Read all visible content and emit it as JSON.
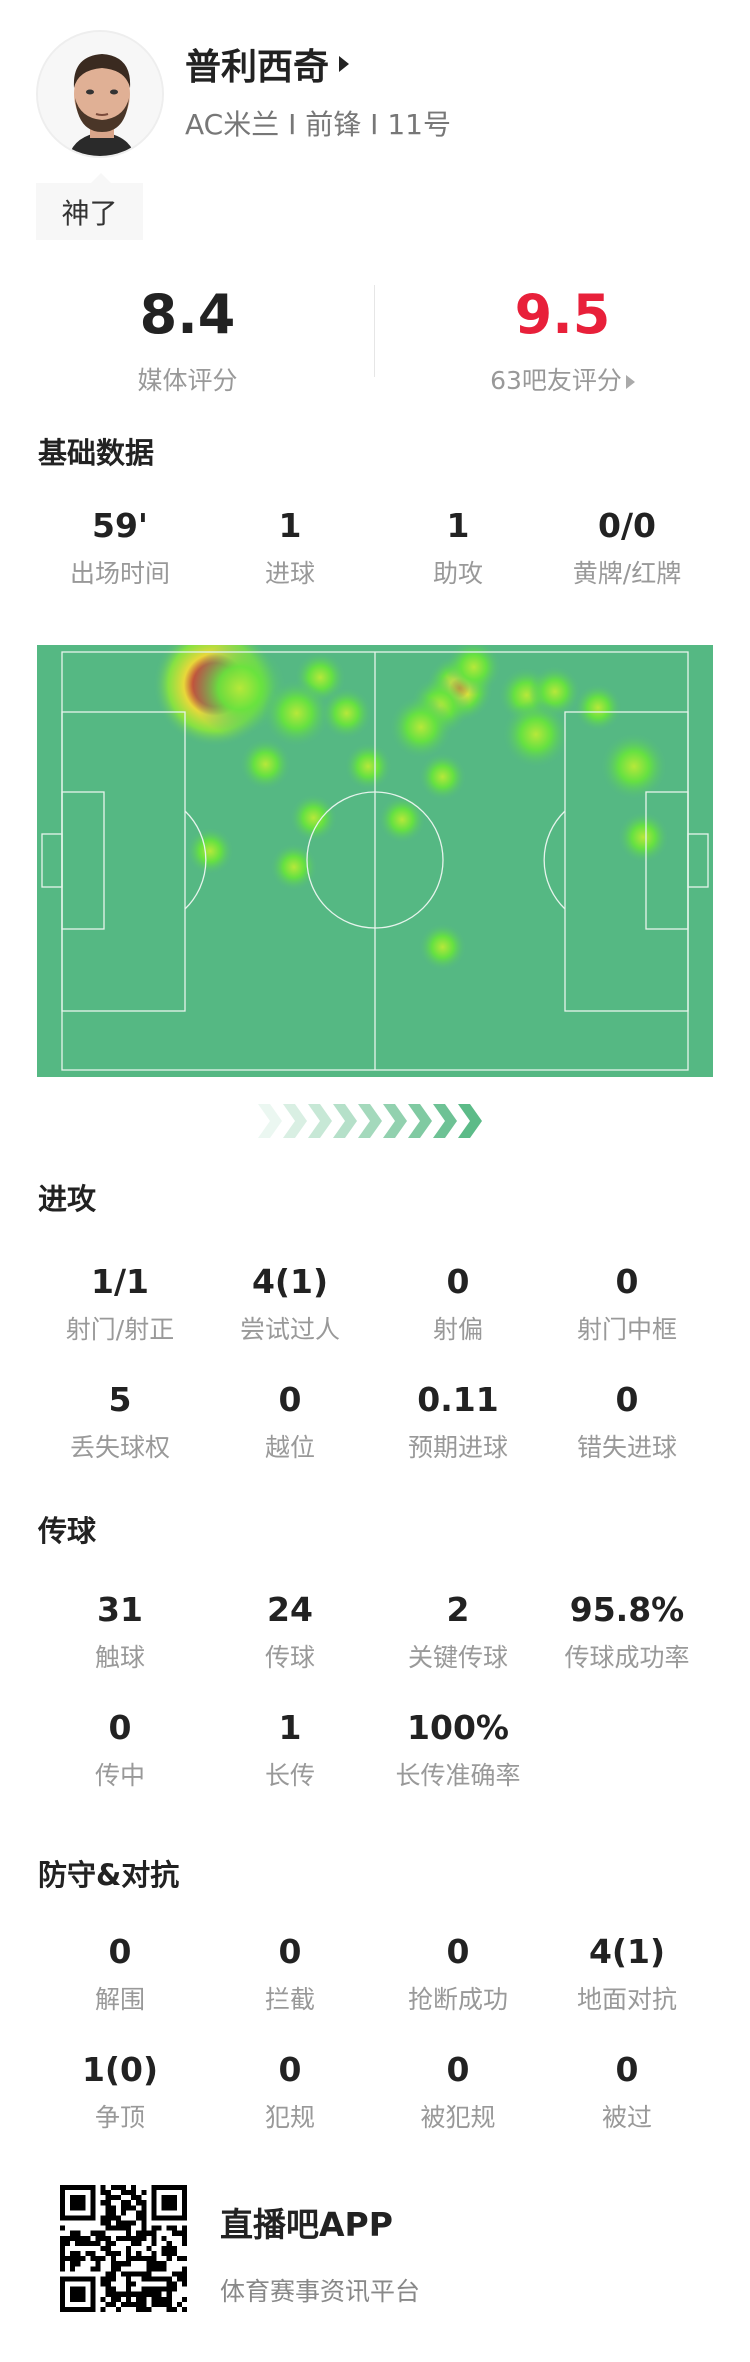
{
  "player": {
    "name": "普利西奇",
    "info": "AC米兰 I 前锋 I 11号",
    "tag": "神了"
  },
  "ratings": {
    "media": {
      "value": "8.4",
      "label": "媒体评分"
    },
    "fans": {
      "value": "9.5",
      "label": "63吧友评分",
      "color": "#e8203a"
    }
  },
  "basic": {
    "title": "基础数据",
    "stats": [
      {
        "value": "59'",
        "label": "出场时间"
      },
      {
        "value": "1",
        "label": "进球"
      },
      {
        "value": "1",
        "label": "助攻"
      },
      {
        "value": "0/0",
        "label": "黄牌/红牌"
      }
    ]
  },
  "heatmap": {
    "pitch_color": "#55b883",
    "arrow_color": "#5cbb88",
    "attack_direction": "right"
  },
  "attack": {
    "title": "进攻",
    "stats": [
      {
        "value": "1/1",
        "label": "射门/射正"
      },
      {
        "value": "4(1)",
        "label": "尝试过人"
      },
      {
        "value": "0",
        "label": "射偏"
      },
      {
        "value": "0",
        "label": "射门中框"
      },
      {
        "value": "5",
        "label": "丢失球权"
      },
      {
        "value": "0",
        "label": "越位"
      },
      {
        "value": "0.11",
        "label": "预期进球"
      },
      {
        "value": "0",
        "label": "错失进球"
      }
    ]
  },
  "passing": {
    "title": "传球",
    "stats": [
      {
        "value": "31",
        "label": "触球"
      },
      {
        "value": "24",
        "label": "传球"
      },
      {
        "value": "2",
        "label": "关键传球"
      },
      {
        "value": "95.8%",
        "label": "传球成功率"
      },
      {
        "value": "0",
        "label": "传中"
      },
      {
        "value": "1",
        "label": "长传"
      },
      {
        "value": "100%",
        "label": "长传准确率"
      }
    ]
  },
  "defense": {
    "title": "防守&对抗",
    "stats": [
      {
        "value": "0",
        "label": "解围"
      },
      {
        "value": "0",
        "label": "拦截"
      },
      {
        "value": "0",
        "label": "抢断成功"
      },
      {
        "value": "4(1)",
        "label": "地面对抗"
      },
      {
        "value": "1(0)",
        "label": "争顶"
      },
      {
        "value": "0",
        "label": "犯规"
      },
      {
        "value": "0",
        "label": "被犯规"
      },
      {
        "value": "0",
        "label": "被过"
      }
    ]
  },
  "footer": {
    "app_name": "直播吧APP",
    "tagline": "体育赛事资讯平台"
  }
}
